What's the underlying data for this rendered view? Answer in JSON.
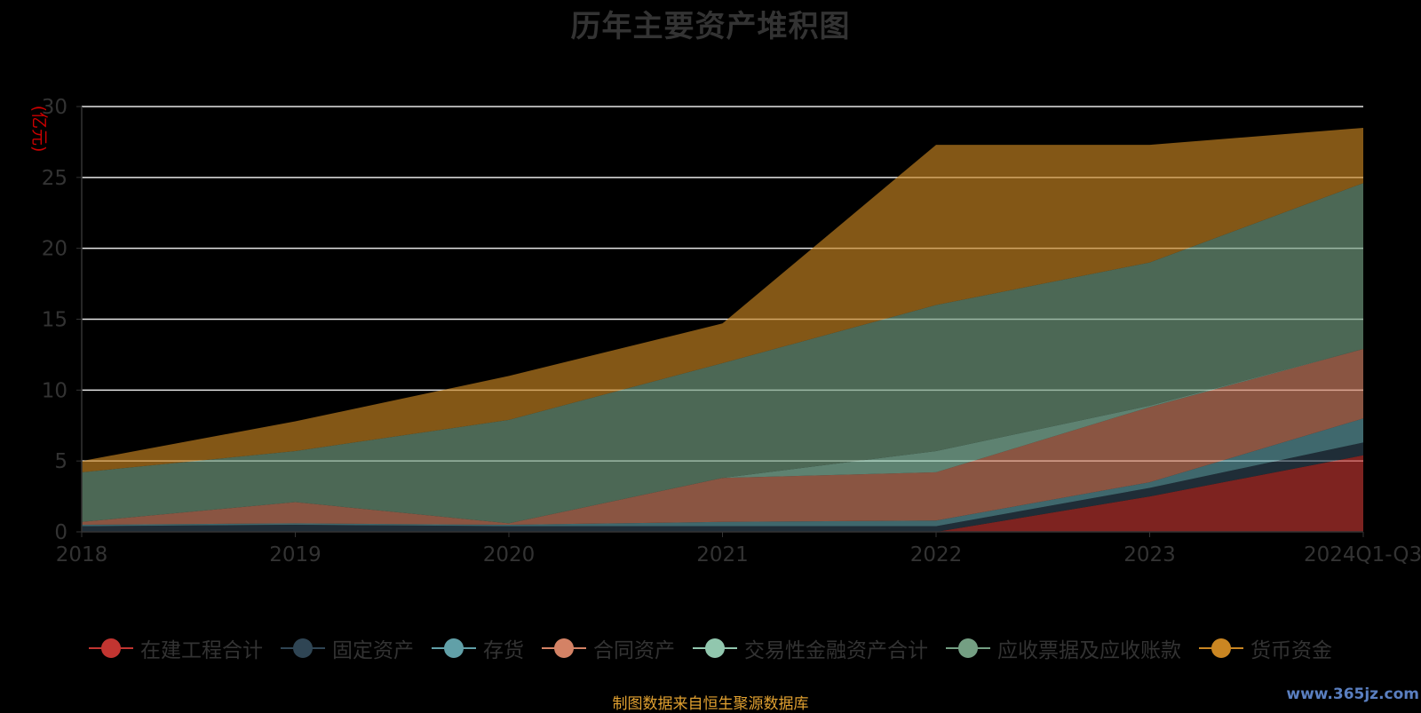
{
  "chart_data": {
    "type": "area",
    "stacked": true,
    "title": "历年主要资产堆积图",
    "ylabel": "(亿元)",
    "ylim": [
      0,
      30
    ],
    "yticks": [
      0,
      5,
      10,
      15,
      20,
      25,
      30
    ],
    "categories": [
      "2018",
      "2019",
      "2020",
      "2021",
      "2022",
      "2023",
      "2024Q1-Q3"
    ],
    "grid": true,
    "legend_position": "bottom",
    "series": [
      {
        "name": "在建工程合计",
        "color": "#c23531",
        "values": [
          0.0,
          0.0,
          0.0,
          0.0,
          0.0,
          2.5,
          5.4
        ]
      },
      {
        "name": "固定资产",
        "color": "#2f4554",
        "values": [
          0.4,
          0.5,
          0.4,
          0.4,
          0.4,
          0.6,
          0.9
        ]
      },
      {
        "name": "存货",
        "color": "#61a0a8",
        "values": [
          0.1,
          0.1,
          0.1,
          0.3,
          0.4,
          0.4,
          1.7
        ]
      },
      {
        "name": "合同资产",
        "color": "#d48265",
        "values": [
          0.2,
          1.5,
          0.1,
          3.1,
          3.4,
          5.3,
          4.9
        ]
      },
      {
        "name": "交易性金融资产合计",
        "color": "#91c7ae",
        "values": [
          0.0,
          0.0,
          0.0,
          0.0,
          1.5,
          0.1,
          0.0
        ]
      },
      {
        "name": "应收票据及应收账款",
        "color": "#749f83",
        "values": [
          3.5,
          3.6,
          7.3,
          8.1,
          10.3,
          10.1,
          11.7
        ]
      },
      {
        "name": "货币资金",
        "color": "#ca8622",
        "values": [
          0.8,
          2.1,
          3.1,
          2.8,
          11.3,
          8.3,
          3.9
        ]
      }
    ]
  },
  "source_note": "制图数据来自恒生聚源数据库",
  "watermark": "www.365jz.com"
}
